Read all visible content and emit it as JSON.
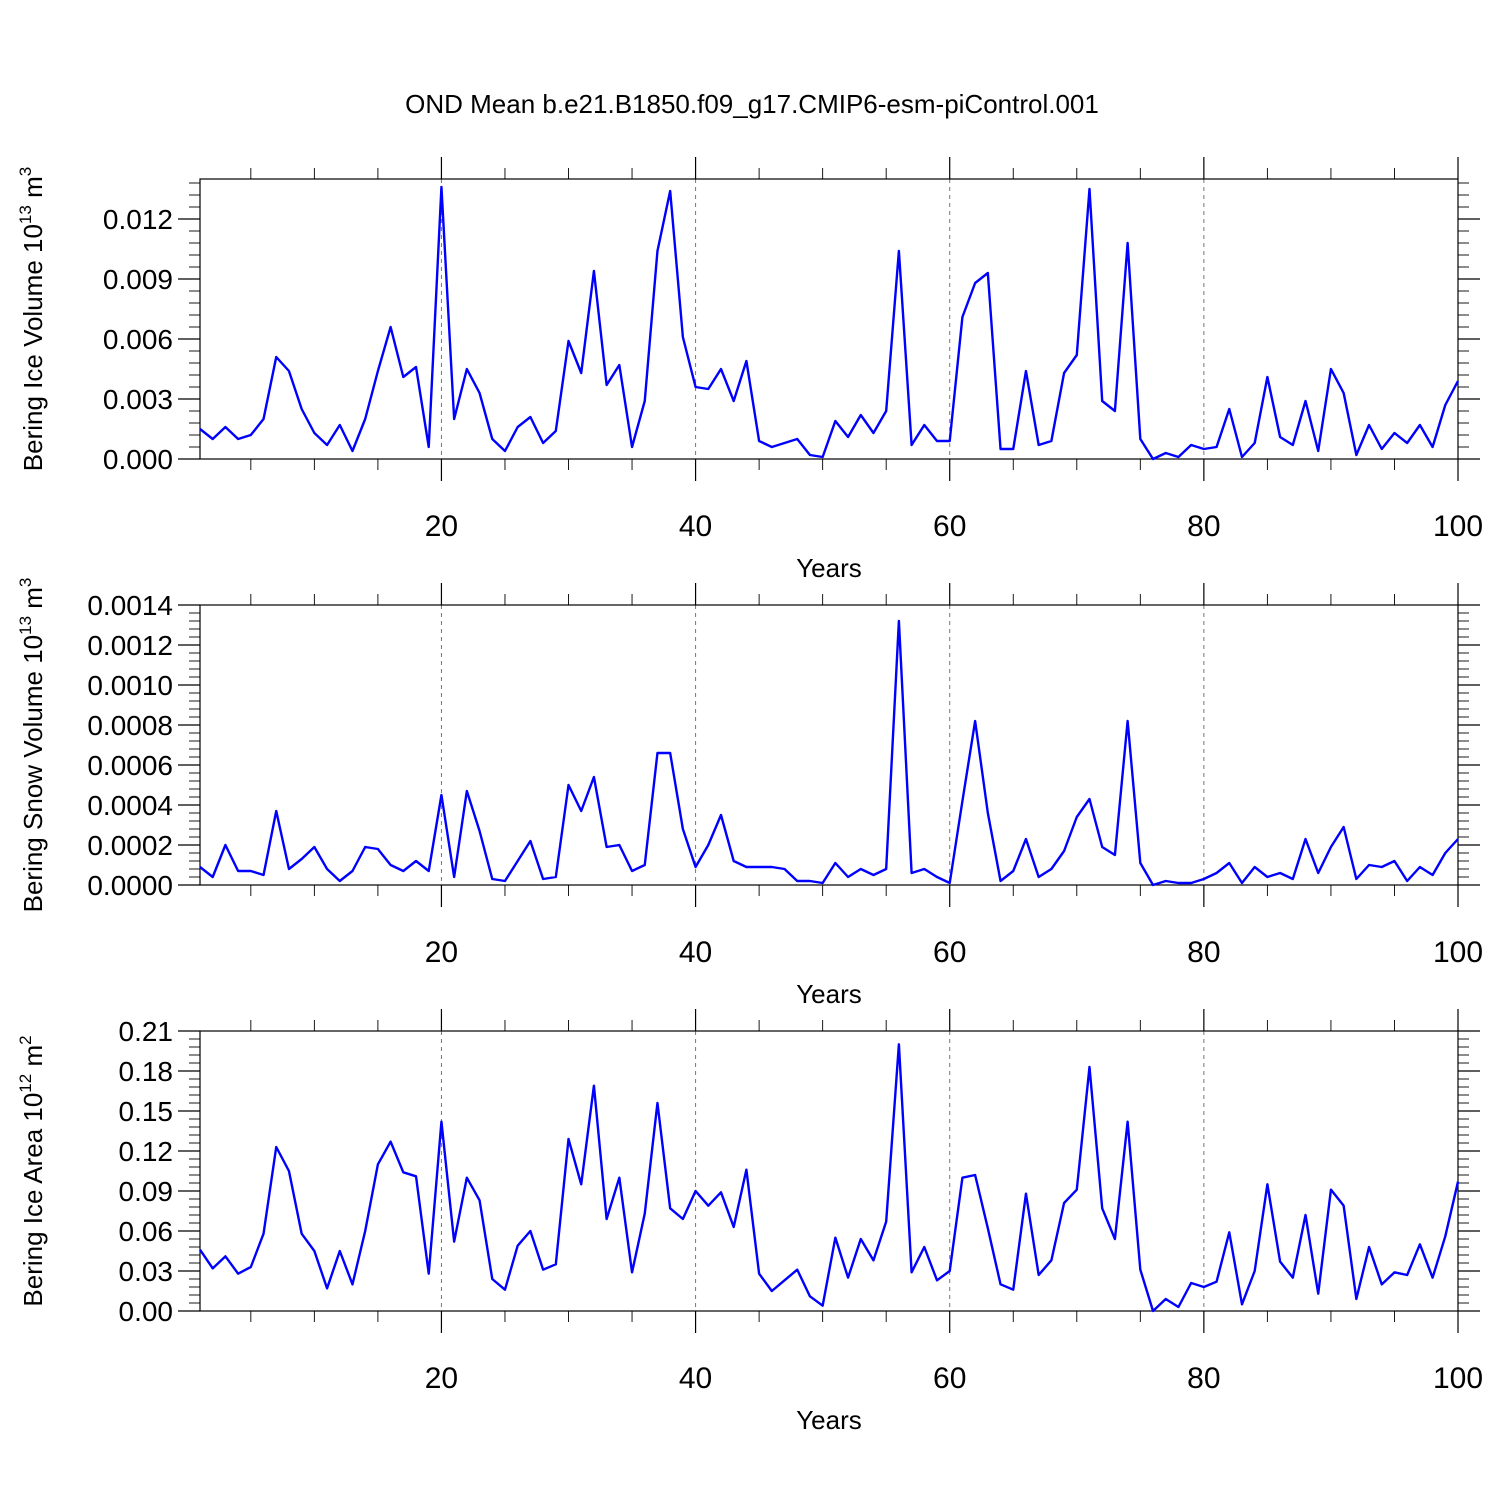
{
  "figure": {
    "title": "OND Mean b.e21.B1850.f09_g17.CMIP6-esm-piControl.001",
    "line_color": "#0000ff"
  },
  "chart_data": [
    {
      "type": "line",
      "ylabel": "Bering Ice Volume",
      "yunit_base": "10",
      "yunit_exp": "13",
      "yunit_name": "m",
      "yunit_name_exp": "3",
      "xlabel": "Years",
      "xlim": [
        1,
        100
      ],
      "ylim": [
        0,
        0.014
      ],
      "xticks": [
        20,
        40,
        60,
        80,
        100
      ],
      "xtick_labels": [
        "20",
        "40",
        "60",
        "80",
        "100"
      ],
      "yticks": [
        0,
        0.003,
        0.006,
        0.009,
        0.012
      ],
      "ytick_labels": [
        "0.000",
        "0.003",
        "0.006",
        "0.009",
        "0.012"
      ],
      "grid_x": [
        20,
        40,
        60,
        80
      ],
      "series": [
        {
          "x": [
            1,
            2,
            3,
            4,
            5,
            6,
            7,
            8,
            9,
            10,
            11,
            12,
            13,
            14,
            15,
            16,
            17,
            18,
            19,
            20,
            21,
            22,
            23,
            24,
            25,
            26,
            27,
            28,
            29,
            30,
            31,
            32,
            33,
            34,
            35,
            36,
            37,
            38,
            39,
            40,
            41,
            42,
            43,
            44,
            45,
            46,
            47,
            48,
            49,
            50,
            51,
            52,
            53,
            54,
            55,
            56,
            57,
            58,
            59,
            60,
            61,
            62,
            63,
            64,
            65,
            66,
            67,
            68,
            69,
            70,
            71,
            72,
            73,
            74,
            75,
            76,
            77,
            78,
            79,
            80,
            81,
            82,
            83,
            84,
            85,
            86,
            87,
            88,
            89,
            90,
            91,
            92,
            93,
            94,
            95,
            96,
            97,
            98,
            99,
            100
          ],
          "values": [
            0.0015,
            0.001,
            0.0016,
            0.001,
            0.0012,
            0.002,
            0.0051,
            0.0044,
            0.0025,
            0.0013,
            0.0007,
            0.0017,
            0.0004,
            0.002,
            0.0044,
            0.0066,
            0.0041,
            0.0046,
            0.0006,
            0.0136,
            0.002,
            0.0045,
            0.0033,
            0.001,
            0.0004,
            0.0016,
            0.0021,
            0.0008,
            0.0014,
            0.0059,
            0.0043,
            0.0094,
            0.0037,
            0.0047,
            0.0006,
            0.0029,
            0.0104,
            0.0134,
            0.0061,
            0.0036,
            0.0035,
            0.0045,
            0.0029,
            0.0049,
            0.0009,
            0.0006,
            0.0008,
            0.001,
            0.0002,
            0.0001,
            0.0019,
            0.0011,
            0.0022,
            0.0013,
            0.0024,
            0.0104,
            0.0007,
            0.0017,
            0.0009,
            0.0009,
            0.0071,
            0.0088,
            0.0093,
            0.0005,
            0.0005,
            0.0044,
            0.0007,
            0.0009,
            0.0043,
            0.0052,
            0.0135,
            0.0029,
            0.0024,
            0.0108,
            0.001,
            0.0,
            0.0003,
            0.0001,
            0.0007,
            0.0005,
            0.0006,
            0.0025,
            0.0001,
            0.0008,
            0.0041,
            0.0011,
            0.0007,
            0.0029,
            0.0004,
            0.0045,
            0.0033,
            0.0002,
            0.0017,
            0.0005,
            0.0013,
            0.0008,
            0.0017,
            0.0006,
            0.0027,
            0.0039
          ]
        }
      ]
    },
    {
      "type": "line",
      "ylabel": "Bering Snow Volume",
      "yunit_base": "10",
      "yunit_exp": "13",
      "yunit_name": "m",
      "yunit_name_exp": "3",
      "xlabel": "Years",
      "xlim": [
        1,
        100
      ],
      "ylim": [
        0,
        0.0014
      ],
      "xticks": [
        20,
        40,
        60,
        80,
        100
      ],
      "xtick_labels": [
        "20",
        "40",
        "60",
        "80",
        "100"
      ],
      "yticks": [
        0,
        0.0002,
        0.0004,
        0.0006,
        0.0008,
        0.001,
        0.0012,
        0.0014
      ],
      "ytick_labels": [
        "0.0000",
        "0.0002",
        "0.0004",
        "0.0006",
        "0.0008",
        "0.0010",
        "0.0012",
        "0.0014"
      ],
      "grid_x": [
        20,
        40,
        60,
        80
      ],
      "series": [
        {
          "x": [
            1,
            2,
            3,
            4,
            5,
            6,
            7,
            8,
            9,
            10,
            11,
            12,
            13,
            14,
            15,
            16,
            17,
            18,
            19,
            20,
            21,
            22,
            23,
            24,
            25,
            26,
            27,
            28,
            29,
            30,
            31,
            32,
            33,
            34,
            35,
            36,
            37,
            38,
            39,
            40,
            41,
            42,
            43,
            44,
            45,
            46,
            47,
            48,
            49,
            50,
            51,
            52,
            53,
            54,
            55,
            56,
            57,
            58,
            59,
            60,
            61,
            62,
            63,
            64,
            65,
            66,
            67,
            68,
            69,
            70,
            71,
            72,
            73,
            74,
            75,
            76,
            77,
            78,
            79,
            80,
            81,
            82,
            83,
            84,
            85,
            86,
            87,
            88,
            89,
            90,
            91,
            92,
            93,
            94,
            95,
            96,
            97,
            98,
            99,
            100
          ],
          "values": [
            9e-05,
            4e-05,
            0.0002,
            7e-05,
            7e-05,
            5e-05,
            0.00037,
            8e-05,
            0.00013,
            0.00019,
            8e-05,
            2e-05,
            7e-05,
            0.00019,
            0.00018,
            0.0001,
            7e-05,
            0.00012,
            7e-05,
            0.00045,
            4e-05,
            0.00047,
            0.00027,
            3e-05,
            2e-05,
            0.00012,
            0.00022,
            3e-05,
            4e-05,
            0.0005,
            0.00037,
            0.00054,
            0.00019,
            0.0002,
            7e-05,
            0.0001,
            0.00066,
            0.00066,
            0.00028,
            9e-05,
            0.0002,
            0.00035,
            0.00012,
            9e-05,
            9e-05,
            9e-05,
            8e-05,
            2e-05,
            2e-05,
            1e-05,
            0.00011,
            4e-05,
            8e-05,
            5e-05,
            8e-05,
            0.00132,
            6e-05,
            8e-05,
            4e-05,
            1e-05,
            0.00042,
            0.00082,
            0.00036,
            2e-05,
            7e-05,
            0.00023,
            4e-05,
            8e-05,
            0.00017,
            0.00034,
            0.00043,
            0.00019,
            0.00015,
            0.00082,
            0.00011,
            0.0,
            2e-05,
            1e-05,
            1e-05,
            3e-05,
            6e-05,
            0.00011,
            1e-05,
            9e-05,
            4e-05,
            6e-05,
            3e-05,
            0.00023,
            6e-05,
            0.00019,
            0.00029,
            3e-05,
            0.0001,
            9e-05,
            0.00012,
            2e-05,
            9e-05,
            5e-05,
            0.00016,
            0.00023
          ]
        }
      ]
    },
    {
      "type": "line",
      "ylabel": "Bering Ice Area",
      "yunit_base": "10",
      "yunit_exp": "12",
      "yunit_name": "m",
      "yunit_name_exp": "2",
      "xlabel": "Years",
      "xlim": [
        1,
        100
      ],
      "ylim": [
        0,
        0.21
      ],
      "xticks": [
        20,
        40,
        60,
        80,
        100
      ],
      "xtick_labels": [
        "20",
        "40",
        "60",
        "80",
        "100"
      ],
      "yticks": [
        0,
        0.03,
        0.06,
        0.09,
        0.12,
        0.15,
        0.18,
        0.21
      ],
      "ytick_labels": [
        "0.00",
        "0.03",
        "0.06",
        "0.09",
        "0.12",
        "0.15",
        "0.18",
        "0.21"
      ],
      "grid_x": [
        20,
        40,
        60,
        80
      ],
      "series": [
        {
          "x": [
            1,
            2,
            3,
            4,
            5,
            6,
            7,
            8,
            9,
            10,
            11,
            12,
            13,
            14,
            15,
            16,
            17,
            18,
            19,
            20,
            21,
            22,
            23,
            24,
            25,
            26,
            27,
            28,
            29,
            30,
            31,
            32,
            33,
            34,
            35,
            36,
            37,
            38,
            39,
            40,
            41,
            42,
            43,
            44,
            45,
            46,
            47,
            48,
            49,
            50,
            51,
            52,
            53,
            54,
            55,
            56,
            57,
            58,
            59,
            60,
            61,
            62,
            63,
            64,
            65,
            66,
            67,
            68,
            69,
            70,
            71,
            72,
            73,
            74,
            75,
            76,
            77,
            78,
            79,
            80,
            81,
            82,
            83,
            84,
            85,
            86,
            87,
            88,
            89,
            90,
            91,
            92,
            93,
            94,
            95,
            96,
            97,
            98,
            99,
            100
          ],
          "values": [
            0.046,
            0.032,
            0.041,
            0.028,
            0.033,
            0.058,
            0.123,
            0.105,
            0.058,
            0.045,
            0.017,
            0.045,
            0.02,
            0.06,
            0.11,
            0.127,
            0.104,
            0.101,
            0.028,
            0.142,
            0.052,
            0.1,
            0.083,
            0.024,
            0.016,
            0.049,
            0.06,
            0.031,
            0.035,
            0.129,
            0.095,
            0.169,
            0.069,
            0.1,
            0.029,
            0.073,
            0.156,
            0.077,
            0.069,
            0.09,
            0.079,
            0.089,
            0.063,
            0.106,
            0.028,
            0.015,
            0.023,
            0.031,
            0.011,
            0.004,
            0.055,
            0.025,
            0.054,
            0.038,
            0.067,
            0.2,
            0.029,
            0.048,
            0.023,
            0.03,
            0.1,
            0.102,
            0.062,
            0.02,
            0.016,
            0.088,
            0.027,
            0.038,
            0.081,
            0.091,
            0.183,
            0.077,
            0.054,
            0.142,
            0.031,
            0.0,
            0.009,
            0.003,
            0.021,
            0.018,
            0.022,
            0.059,
            0.005,
            0.03,
            0.095,
            0.037,
            0.025,
            0.072,
            0.013,
            0.091,
            0.079,
            0.009,
            0.048,
            0.02,
            0.029,
            0.027,
            0.05,
            0.025,
            0.056,
            0.097
          ]
        }
      ]
    }
  ]
}
